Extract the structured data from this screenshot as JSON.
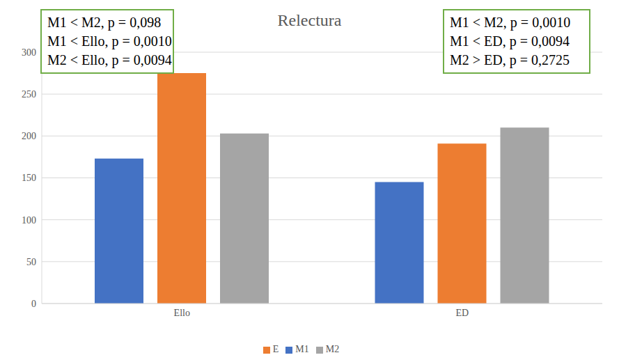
{
  "chart_data": {
    "type": "bar",
    "title": "Relectura",
    "categories": [
      "Ello",
      "ED"
    ],
    "series": [
      {
        "name": "M1",
        "color": "#4472c4",
        "values": [
          173,
          145
        ]
      },
      {
        "name": "E",
        "color": "#ed7d31",
        "values": [
          275,
          191
        ]
      },
      {
        "name": "M2",
        "color": "#a5a5a5",
        "values": [
          203,
          210
        ]
      }
    ],
    "ylim": [
      0,
      300
    ],
    "yticks": [
      0,
      50,
      100,
      150,
      200,
      250,
      300
    ],
    "grid": true,
    "legend": "bottom",
    "annotations": [
      [
        "M1 < M2, p = 0,098",
        "M1 < Ello, p = 0,0010",
        "M2 < Ello, p = 0,0094"
      ],
      [
        "M1 < M2, p = 0,0010",
        "M1 < ED, p = 0,0094",
        "M2 > ED, p = 0,2725"
      ]
    ]
  }
}
